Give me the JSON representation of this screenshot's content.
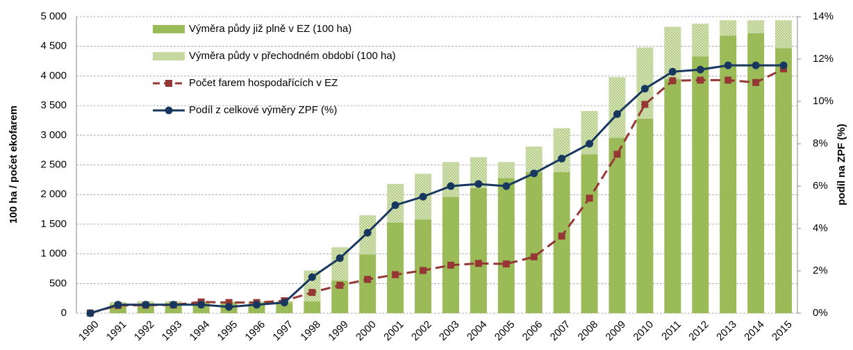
{
  "chart_data": {
    "type": "bar",
    "stacked": true,
    "categories": [
      "1990",
      "1991",
      "1992",
      "1993",
      "1994",
      "1995",
      "1996",
      "1997",
      "1998",
      "1999",
      "2000",
      "2001",
      "2002",
      "2003",
      "2004",
      "2005",
      "2006",
      "2007",
      "2008",
      "2009",
      "2010",
      "2011",
      "2012",
      "2013",
      "2014",
      "2015"
    ],
    "ylabel": "100 ha / počet ekofarem",
    "y2label": "podíl na ZPF (%)",
    "ylim": [
      0,
      5000
    ],
    "yticks": [
      0,
      500,
      {
        "value": 1000,
        "label": "1 000"
      },
      {
        "value": 1500,
        "label": "1 500"
      },
      {
        "value": 2000,
        "label": "2 000"
      },
      {
        "value": 2500,
        "label": "2 500"
      },
      {
        "value": 3000,
        "label": "3 000"
      },
      {
        "value": 3500,
        "label": "3 500"
      },
      {
        "value": 4000,
        "label": "4 000"
      },
      {
        "value": 4500,
        "label": "4 500"
      },
      {
        "value": 5000,
        "label": "5 000"
      }
    ],
    "y2lim": [
      0,
      14
    ],
    "y2ticks": [
      {
        "value": 0,
        "label": "0%"
      },
      {
        "value": 2,
        "label": "2%"
      },
      {
        "value": 4,
        "label": "4%"
      },
      {
        "value": 6,
        "label": "6%"
      },
      {
        "value": 8,
        "label": "8%"
      },
      {
        "value": 10,
        "label": "10%"
      },
      {
        "value": 12,
        "label": "12%"
      },
      {
        "value": 14,
        "label": "14%"
      }
    ],
    "grid": true,
    "legend": "upper left",
    "series": [
      {
        "name": "Výměra půdy již plně v EZ (100 ha)",
        "type": "bar",
        "color": "#9bbb59",
        "pattern": "solid",
        "values": [
          0,
          150,
          160,
          170,
          180,
          180,
          180,
          180,
          200,
          550,
          990,
          1530,
          1580,
          1960,
          2110,
          2280,
          2380,
          2380,
          2680,
          2960,
          3280,
          3950,
          4330,
          4680,
          4720,
          4470
        ]
      },
      {
        "name": "Výměra půdy v přechodném období (100 ha)",
        "type": "bar",
        "color": "#9bbb59",
        "pattern": "dotted",
        "values": [
          0,
          40,
          40,
          30,
          20,
          20,
          20,
          30,
          520,
          560,
          660,
          650,
          770,
          590,
          520,
          270,
          430,
          740,
          730,
          1020,
          1200,
          880,
          550,
          260,
          220,
          470
        ]
      },
      {
        "name": "Počet farem hospodařících v EZ",
        "type": "line",
        "color": "#953735",
        "linestyle": "dashed",
        "marker": "square",
        "values": [
          3,
          130,
          135,
          140,
          190,
          180,
          180,
          210,
          350,
          470,
          570,
          650,
          720,
          810,
          840,
          830,
          950,
          1300,
          1940,
          2680,
          3520,
          3920,
          3930,
          3930,
          3890,
          4120
        ]
      },
      {
        "name": "Podíl z celkové výměry ZPF (%)",
        "type": "line",
        "axis": "y2",
        "color": "#17375e",
        "linestyle": "solid",
        "marker": "circle",
        "values": [
          0,
          0.4,
          0.4,
          0.4,
          0.4,
          0.3,
          0.4,
          0.5,
          1.7,
          2.6,
          3.8,
          5.1,
          5.5,
          6.0,
          6.1,
          6.0,
          6.6,
          7.3,
          8.0,
          9.4,
          10.6,
          11.4,
          11.5,
          11.7,
          11.7,
          11.7
        ]
      }
    ]
  }
}
